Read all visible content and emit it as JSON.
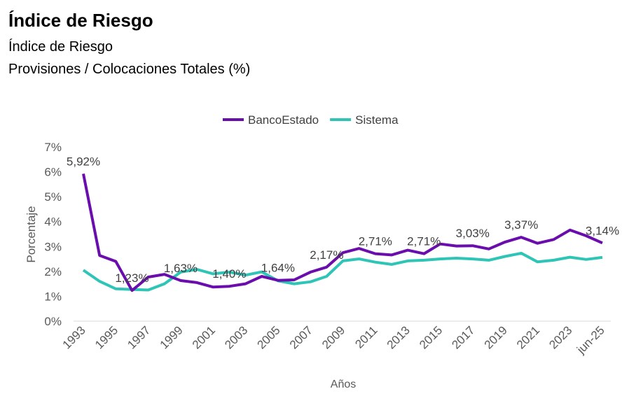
{
  "header": {
    "title": "Índice de Riesgo",
    "subtitle": "Índice de Riesgo",
    "subtitle2": "Provisiones / Colocaciones Totales (%)"
  },
  "chart_data": {
    "type": "line",
    "xlabel": "Años",
    "ylabel": "Porcentaje",
    "ylim": [
      0,
      7
    ],
    "y_ticks": [
      "0%",
      "1%",
      "2%",
      "3%",
      "4%",
      "5%",
      "6%",
      "7%"
    ],
    "grid": false,
    "legend_placement": "top",
    "categories": [
      "1993",
      "1994",
      "1995",
      "1996",
      "1997",
      "1998",
      "1999",
      "2000",
      "2001",
      "2002",
      "2003",
      "2004",
      "2005",
      "2006",
      "2007",
      "2008",
      "2009",
      "2010",
      "2011",
      "2012",
      "2013",
      "2014",
      "2015",
      "2016",
      "2017",
      "2018",
      "2019",
      "2020",
      "2021",
      "2022",
      "2023",
      "2024",
      "jun-25"
    ],
    "x_tick_labels": [
      "1993",
      "1995",
      "1997",
      "1999",
      "2001",
      "2003",
      "2005",
      "2007",
      "2009",
      "2011",
      "2013",
      "2015",
      "2017",
      "2019",
      "2021",
      "2023",
      "jun-25"
    ],
    "series": [
      {
        "name": "BancoEstado",
        "color": "#6a0dad",
        "values": [
          5.92,
          2.64,
          2.4,
          1.23,
          1.77,
          1.88,
          1.63,
          1.55,
          1.37,
          1.4,
          1.5,
          1.8,
          1.64,
          1.66,
          1.97,
          2.17,
          2.75,
          2.92,
          2.71,
          2.66,
          2.85,
          2.71,
          3.1,
          3.02,
          3.03,
          2.9,
          3.18,
          3.37,
          3.13,
          3.28,
          3.66,
          3.43,
          3.14
        ]
      },
      {
        "name": "Sistema",
        "color": "#2ec4b6",
        "values": [
          2.05,
          1.6,
          1.3,
          1.27,
          1.25,
          1.5,
          1.97,
          2.08,
          1.9,
          1.97,
          1.85,
          1.98,
          1.62,
          1.5,
          1.58,
          1.8,
          2.42,
          2.5,
          2.37,
          2.28,
          2.42,
          2.45,
          2.5,
          2.53,
          2.5,
          2.45,
          2.6,
          2.73,
          2.38,
          2.45,
          2.57,
          2.48,
          2.56
        ]
      }
    ],
    "data_labels": [
      {
        "x": "1993",
        "text": "5,92%"
      },
      {
        "x": "1996",
        "text": "1,23%"
      },
      {
        "x": "1999",
        "text": "1,63%"
      },
      {
        "x": "2002",
        "text": "1,40%"
      },
      {
        "x": "2005",
        "text": "1,64%"
      },
      {
        "x": "2008",
        "text": "2,17%"
      },
      {
        "x": "2011",
        "text": "2,71%"
      },
      {
        "x": "2014",
        "text": "2,71%"
      },
      {
        "x": "2017",
        "text": "3,03%"
      },
      {
        "x": "2020",
        "text": "3,37%"
      },
      {
        "x": "jun-25",
        "text": "3,14%"
      }
    ]
  }
}
